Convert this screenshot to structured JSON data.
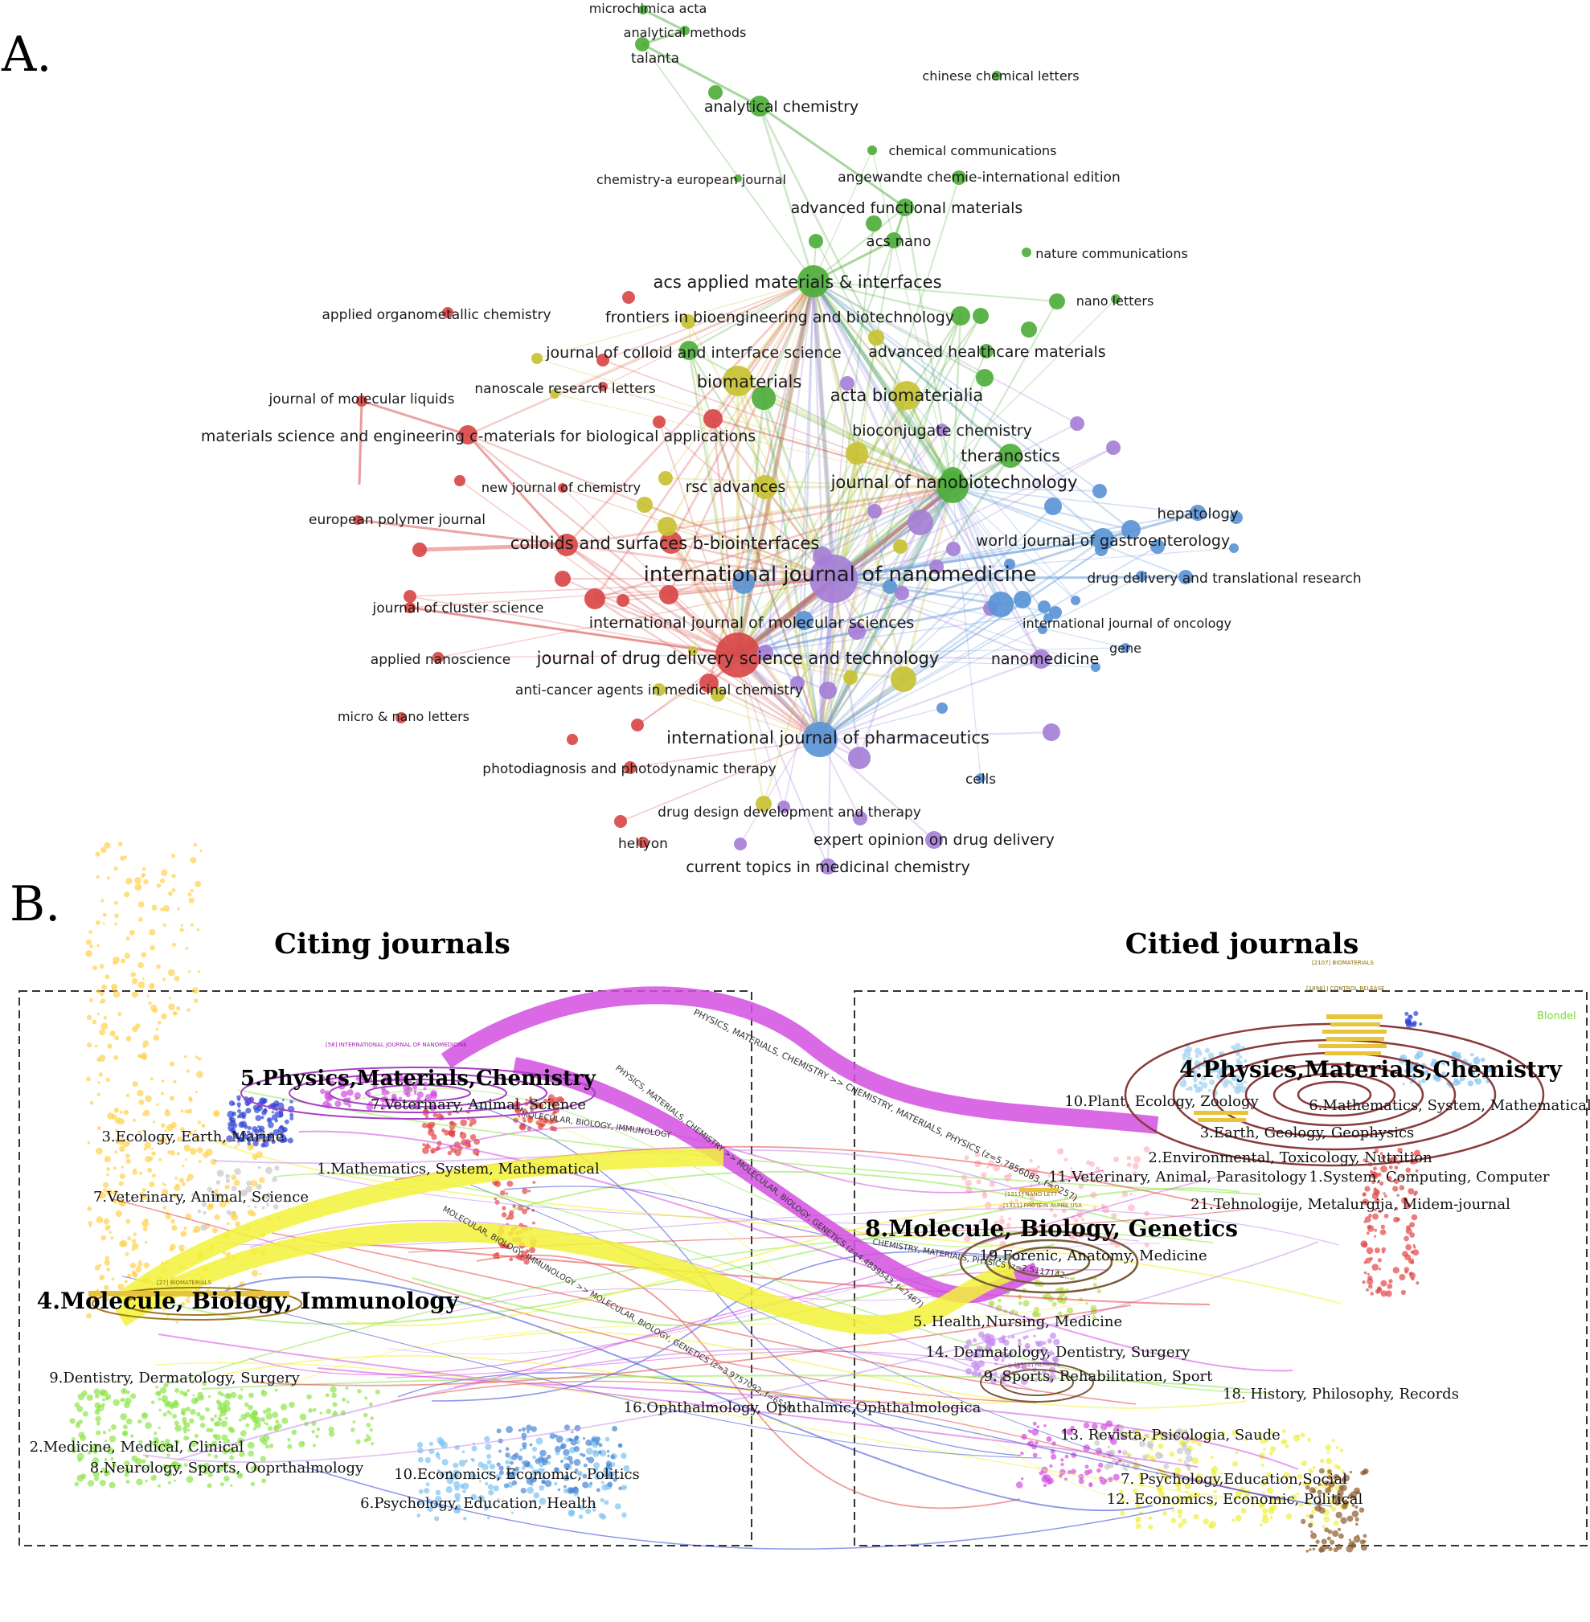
{
  "panel_a": {
    "letter": "A.",
    "clusters": {
      "green": "#4fae3c",
      "red": "#d94848",
      "yellow": "#c8c232",
      "purple": "#a57fd6",
      "blue": "#5b95d6"
    },
    "labels": [
      "microchimica acta",
      "analytical methods",
      "talanta",
      "analytical chemistry",
      "chinese chemical letters",
      "chemical communications",
      "angewandte chemie-international edition",
      "chemistry-a european journal",
      "advanced functional materials",
      "acs nano",
      "nature communications",
      "acs applied materials & interfaces",
      "nano letters",
      "applied organometallic chemistry",
      "frontiers in bioengineering and biotechnology",
      "journal of colloid and interface science",
      "advanced healthcare materials",
      "nanoscale research letters",
      "biomaterials",
      "journal of molecular liquids",
      "acta biomaterialia",
      "bioconjugate chemistry",
      "materials science and engineering c-materials for biological applications",
      "theranostics",
      "new journal of chemistry",
      "rsc advances",
      "journal of nanobiotechnology",
      "hepatology",
      "european polymer journal",
      "world journal of gastroenterology",
      "colloids and surfaces b-biointerfaces",
      "international journal of nanomedicine",
      "drug delivery and translational research",
      "journal of cluster science",
      "international journal of molecular sciences",
      "international journal of oncology",
      "applied nanoscience",
      "journal of drug delivery science and technology",
      "nanomedicine",
      "gene",
      "anti-cancer agents in medicinal chemistry",
      "micro & nano letters",
      "international journal of pharmaceutics",
      "photodiagnosis and photodynamic therapy",
      "cells",
      "drug design development and therapy",
      "expert opinion on drug delivery",
      "heliyon",
      "current topics in medicinal chemistry"
    ]
  },
  "panel_b": {
    "letter": "B.",
    "citing_heading": "Citing journals",
    "cited_heading": "Citied journals",
    "blondel": "Blondel",
    "citing_clusters": [
      "5.Physics,Materials,Chemistry",
      "7.Veterinary, Animal, Science",
      "3.Ecology, Earth, Marine",
      "1.Mathematics, System, Mathematical",
      "7.Veterinary, Animal, Science",
      "4.Molecule, Biology, Immunology",
      "9.Dentistry, Dermatology, Surgery",
      "2.Medicine, Medical, Clinical",
      "8.Neurology, Sports, Ooprthalmology",
      "10.Economics, Economic, Politics",
      "6.Psychology, Education, Health"
    ],
    "cited_clusters": [
      "4.Physics,Materials,Chemistry",
      "10.Plant, Ecology, Zoology",
      "6.Mathematics, System, Mathematical",
      "3.Earth, Geology, Geophysics",
      "2.Environmental, Toxicology, Nutrition",
      "11.Veterinary, Animal, Parasitology",
      "1.System, Computing, Computer",
      "21.Tehnologije, Metalurgija, Midem-journal",
      "8.Molecule, Biology, Genetics",
      "19.Forenic, Anatomy, Medicine",
      "5. Health,Nursing, Medicine",
      "14. Dermatology, Dentistry, Surgery",
      "9. Sports, Rehabilitation, Sport",
      "16.Ophthalmology, Ophthalmic,Ophthalmologica",
      "18. History, Philosophy, Records",
      "13. Revista, Psicologia, Saude",
      "7. Psychology,Education,Social",
      "12. Economics, Economic, Political"
    ],
    "flows": [
      "PHYSICS, MATERIALS, CHEMISTRY >> CHEMISTRY, MATERIALS, PHYSICS (z=5.7856083, f=9257)",
      "PHYSICS, MATERIALS, CHEMISTRY >> MOLECULAR, BIOLOGY, GENETICS (z=4.4839543, f=7467)",
      "MOLECULAR, BIOLOGY, IMMUNOLOGY >> MOLECULAR, BIOLOGY, GENETICS (z=3.9757092, f=6510)",
      "MOLECULAR, BIOLOGY, IMMUNOLOGY",
      "CHEMISTRY, MATERIALS, PHYSICS (z=2.5117142..."
    ],
    "flow_colors": {
      "physics": "#d24fe0",
      "molecular": "#f2f23a"
    },
    "node_tags": [
      "[58] INTERNATIONAL JOURNAL OF NANOMEDICINE",
      "[27] BIOMATERIALS",
      "[2107] BIOMATERIALS",
      "[1898] J CONTROL RELEASE",
      "[1311] NANO LETT",
      "[1311] PROTEIN ALPHA USA",
      "[1312] HEPATOL"
    ]
  }
}
